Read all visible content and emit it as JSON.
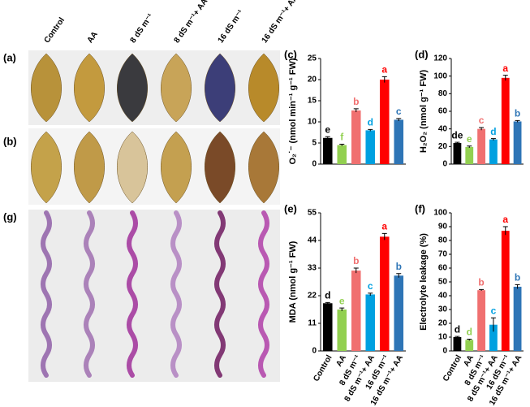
{
  "photo_panels": {
    "labels": [
      "(a)",
      "(b)",
      "(g)"
    ],
    "treatments": [
      "Control",
      "AA",
      "8 dS m⁻¹",
      "8 dS m⁻¹+ AA",
      "16 dS m⁻¹",
      "16 dS m⁻¹+ AA"
    ]
  },
  "chart_data": [
    {
      "type": "bar",
      "panel": "(c)",
      "y_label": "O₂˙⁻ (nmol min⁻¹ g⁻¹ FW)",
      "categories": [
        null,
        null,
        null,
        null,
        null,
        null
      ],
      "values": [
        6.2,
        4.5,
        12.7,
        8.0,
        20.0,
        10.5
      ],
      "errors": [
        0.3,
        0.2,
        0.4,
        0.2,
        0.7,
        0.3
      ],
      "letters": [
        "e",
        "f",
        "b",
        "d",
        "a",
        "c"
      ],
      "colors": [
        "#000000",
        "#92d050",
        "#f07070",
        "#00a0e0",
        "#ff0000",
        "#2e75b6"
      ],
      "ylim": [
        0,
        25
      ],
      "yticks": [
        0,
        5,
        10,
        15,
        20,
        25
      ]
    },
    {
      "type": "bar",
      "panel": "(d)",
      "y_label": "H₂O₂ (nmol g⁻¹ FW)",
      "categories": [
        null,
        null,
        null,
        null,
        null,
        null
      ],
      "values": [
        24,
        19.5,
        40,
        28,
        98,
        48.5
      ],
      "errors": [
        0.8,
        1,
        1.5,
        1,
        3,
        1
      ],
      "letters": [
        "de",
        "e",
        "c",
        "d",
        "a",
        "b"
      ],
      "colors": [
        "#000000",
        "#92d050",
        "#f07070",
        "#00a0e0",
        "#ff0000",
        "#2e75b6"
      ],
      "ylim": [
        0,
        120
      ],
      "yticks": [
        0,
        20,
        40,
        60,
        80,
        100,
        120
      ]
    },
    {
      "type": "bar",
      "panel": "(e)",
      "y_label": "MDA (nmol g⁻¹ FW)",
      "categories": [
        "Control",
        "AA",
        "8 dS m⁻¹",
        "8 dS m⁻¹+ AA",
        "16 dS m⁻¹",
        "16 dS m⁻¹+ AA"
      ],
      "values": [
        19,
        16.5,
        32,
        22.5,
        45.5,
        30
      ],
      "errors": [
        0.3,
        0.6,
        1,
        0.5,
        1.3,
        0.8
      ],
      "letters": [
        "d",
        "e",
        "b",
        "c",
        "a",
        "b"
      ],
      "colors": [
        "#000000",
        "#92d050",
        "#f07070",
        "#00a0e0",
        "#ff0000",
        "#2e75b6"
      ],
      "ylim": [
        0,
        55
      ],
      "yticks": [
        0,
        11,
        22,
        33,
        44,
        55
      ]
    },
    {
      "type": "bar",
      "panel": "(f)",
      "y_label": "Electrolyte leakage (%)",
      "categories": [
        "Control",
        "AA",
        "8 dS m⁻¹",
        "8 dS m⁻¹+ AA",
        "16 dS m⁻¹",
        "16 dS m⁻¹+ AA"
      ],
      "values": [
        10,
        8,
        44,
        19,
        87,
        46.5
      ],
      "errors": [
        0.5,
        0.5,
        0.5,
        5,
        3,
        1.5
      ],
      "letters": [
        "d",
        "d",
        "b",
        "c",
        "a",
        "b"
      ],
      "colors": [
        "#000000",
        "#92d050",
        "#f07070",
        "#00a0e0",
        "#ff0000",
        "#2e75b6"
      ],
      "ylim": [
        0,
        100
      ],
      "yticks": [
        0,
        10,
        20,
        30,
        40,
        50,
        60,
        70,
        80,
        90,
        100
      ]
    }
  ]
}
